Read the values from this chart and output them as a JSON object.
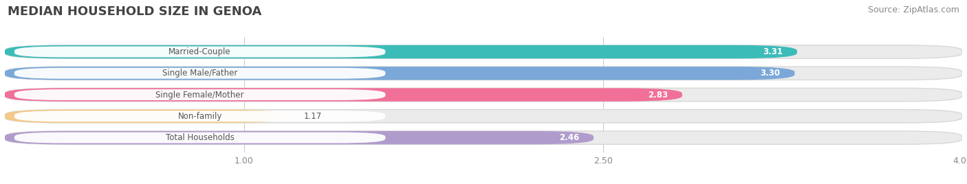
{
  "title": "MEDIAN HOUSEHOLD SIZE IN GENOA",
  "source": "Source: ZipAtlas.com",
  "categories": [
    "Married-Couple",
    "Single Male/Father",
    "Single Female/Mother",
    "Non-family",
    "Total Households"
  ],
  "values": [
    3.31,
    3.3,
    2.83,
    1.17,
    2.46
  ],
  "bar_colors": [
    "#3cbcb8",
    "#7ba8d8",
    "#f07098",
    "#f5c98a",
    "#b09ccc"
  ],
  "bar_bg_colors": [
    "#ebebeb",
    "#ebebeb",
    "#ebebeb",
    "#ebebeb",
    "#ebebeb"
  ],
  "xlim_data": [
    0.0,
    4.0
  ],
  "xticks": [
    1.0,
    2.5,
    4.0
  ],
  "label_text_color": "#555555",
  "value_label_color": "#ffffff",
  "title_fontsize": 13,
  "source_fontsize": 9,
  "bar_height": 0.62,
  "figsize": [
    14.06,
    2.68
  ],
  "dpi": 100,
  "bg_color": "#ffffff"
}
